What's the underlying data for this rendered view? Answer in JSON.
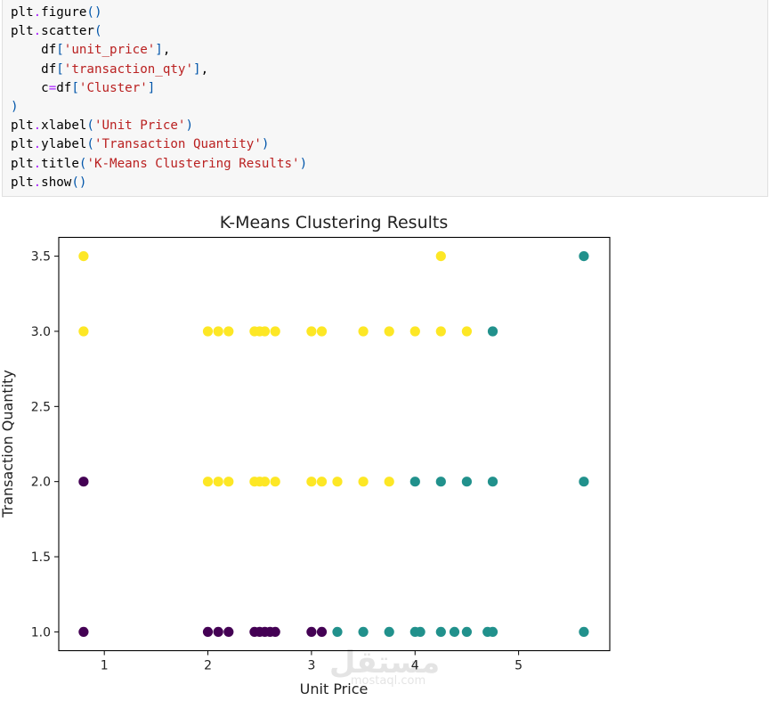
{
  "code_cell": {
    "lines": [
      [
        {
          "t": "plt"
        },
        {
          "t": ".",
          "c": "op"
        },
        {
          "t": "figure"
        },
        {
          "t": "()",
          "c": "br"
        }
      ],
      [
        {
          "t": "plt"
        },
        {
          "t": ".",
          "c": "op"
        },
        {
          "t": "scatter"
        },
        {
          "t": "(",
          "c": "br"
        }
      ],
      [
        {
          "t": "    df"
        },
        {
          "t": "[",
          "c": "br"
        },
        {
          "t": "'unit_price'",
          "c": "str"
        },
        {
          "t": "]",
          "c": "br"
        },
        {
          "t": ","
        }
      ],
      [
        {
          "t": "    df"
        },
        {
          "t": "[",
          "c": "br"
        },
        {
          "t": "'transaction_qty'",
          "c": "str"
        },
        {
          "t": "]",
          "c": "br"
        },
        {
          "t": ","
        }
      ],
      [
        {
          "t": "    c"
        },
        {
          "t": "=",
          "c": "op"
        },
        {
          "t": "df"
        },
        {
          "t": "[",
          "c": "br"
        },
        {
          "t": "'Cluster'",
          "c": "str"
        },
        {
          "t": "]",
          "c": "br"
        }
      ],
      [
        {
          "t": ")",
          "c": "br"
        }
      ],
      [
        {
          "t": "plt"
        },
        {
          "t": ".",
          "c": "op"
        },
        {
          "t": "xlabel"
        },
        {
          "t": "(",
          "c": "br"
        },
        {
          "t": "'Unit Price'",
          "c": "str"
        },
        {
          "t": ")",
          "c": "br"
        }
      ],
      [
        {
          "t": "plt"
        },
        {
          "t": ".",
          "c": "op"
        },
        {
          "t": "ylabel"
        },
        {
          "t": "(",
          "c": "br"
        },
        {
          "t": "'Transaction Quantity'",
          "c": "str"
        },
        {
          "t": ")",
          "c": "br"
        }
      ],
      [
        {
          "t": "plt"
        },
        {
          "t": ".",
          "c": "op"
        },
        {
          "t": "title"
        },
        {
          "t": "(",
          "c": "br"
        },
        {
          "t": "'K-Means Clustering Results'",
          "c": "str"
        },
        {
          "t": ")",
          "c": "br"
        }
      ],
      [
        {
          "t": "plt"
        },
        {
          "t": ".",
          "c": "op"
        },
        {
          "t": "show"
        },
        {
          "t": "()",
          "c": "br"
        }
      ]
    ]
  },
  "watermark": {
    "main": "مستقل",
    "sub": "mostaql.com"
  },
  "chart_data": {
    "type": "scatter",
    "title": "K-Means Clustering Results",
    "xlabel": "Unit Price",
    "ylabel": "Transaction Quantity",
    "xlim": [
      0.56,
      5.88
    ],
    "ylim": [
      0.875,
      3.625
    ],
    "xticks": [
      1,
      2,
      3,
      4,
      5
    ],
    "yticks": [
      1.0,
      1.5,
      2.0,
      2.5,
      3.0,
      3.5
    ],
    "xtick_labels": [
      "1",
      "2",
      "3",
      "4",
      "5"
    ],
    "ytick_labels": [
      "1.0",
      "1.5",
      "2.0",
      "2.5",
      "3.0",
      "3.5"
    ],
    "grid": false,
    "colors": {
      "0": "#440154",
      "1": "#21918c",
      "2": "#fde725"
    },
    "series": [
      {
        "cluster": 0,
        "points": [
          [
            0.8,
            2.0
          ],
          [
            0.8,
            1.0
          ],
          [
            2.0,
            1.0
          ],
          [
            2.1,
            1.0
          ],
          [
            2.2,
            1.0
          ],
          [
            2.45,
            1.0
          ],
          [
            2.5,
            1.0
          ],
          [
            2.55,
            1.0
          ],
          [
            2.6,
            1.0
          ],
          [
            2.65,
            1.0
          ],
          [
            3.0,
            1.0
          ],
          [
            3.1,
            1.0
          ]
        ]
      },
      {
        "cluster": 1,
        "points": [
          [
            5.63,
            3.5
          ],
          [
            4.75,
            3.0
          ],
          [
            4.0,
            2.0
          ],
          [
            4.25,
            2.0
          ],
          [
            4.5,
            2.0
          ],
          [
            4.75,
            2.0
          ],
          [
            5.63,
            2.0
          ],
          [
            3.25,
            1.0
          ],
          [
            3.5,
            1.0
          ],
          [
            3.75,
            1.0
          ],
          [
            4.0,
            1.0
          ],
          [
            4.05,
            1.0
          ],
          [
            4.25,
            1.0
          ],
          [
            4.38,
            1.0
          ],
          [
            4.5,
            1.0
          ],
          [
            4.7,
            1.0
          ],
          [
            4.75,
            1.0
          ],
          [
            5.63,
            1.0
          ]
        ]
      },
      {
        "cluster": 2,
        "points": [
          [
            0.8,
            3.5
          ],
          [
            4.25,
            3.5
          ],
          [
            0.8,
            3.0
          ],
          [
            2.0,
            3.0
          ],
          [
            2.1,
            3.0
          ],
          [
            2.2,
            3.0
          ],
          [
            2.45,
            3.0
          ],
          [
            2.5,
            3.0
          ],
          [
            2.55,
            3.0
          ],
          [
            2.65,
            3.0
          ],
          [
            3.0,
            3.0
          ],
          [
            3.1,
            3.0
          ],
          [
            3.5,
            3.0
          ],
          [
            3.75,
            3.0
          ],
          [
            4.0,
            3.0
          ],
          [
            4.25,
            3.0
          ],
          [
            4.5,
            3.0
          ],
          [
            2.0,
            2.0
          ],
          [
            2.1,
            2.0
          ],
          [
            2.2,
            2.0
          ],
          [
            2.45,
            2.0
          ],
          [
            2.5,
            2.0
          ],
          [
            2.55,
            2.0
          ],
          [
            2.65,
            2.0
          ],
          [
            3.0,
            2.0
          ],
          [
            3.1,
            2.0
          ],
          [
            3.25,
            2.0
          ],
          [
            3.5,
            2.0
          ],
          [
            3.75,
            2.0
          ]
        ]
      }
    ]
  }
}
